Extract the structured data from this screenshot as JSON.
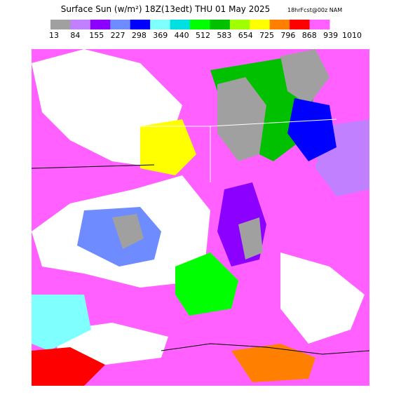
{
  "header": {
    "title": "Surface Sun (w/m²) 18Z(13edt) THU 01 May 2025",
    "run": "18hrFcst@00z NAM"
  },
  "legend": {
    "labels": [
      "13",
      "84",
      "155",
      "227",
      "298",
      "369",
      "440",
      "512",
      "583",
      "654",
      "725",
      "796",
      "868",
      "939",
      "1010"
    ],
    "colors": [
      "#a0a0a0",
      "#c080ff",
      "#8c00ff",
      "#6e8cff",
      "#0000ff",
      "#80ffff",
      "#00e0e0",
      "#00ff00",
      "#00c000",
      "#a0ff00",
      "#ffff00",
      "#ff8000",
      "#ff0000",
      "#ff60ff"
    ]
  }
}
